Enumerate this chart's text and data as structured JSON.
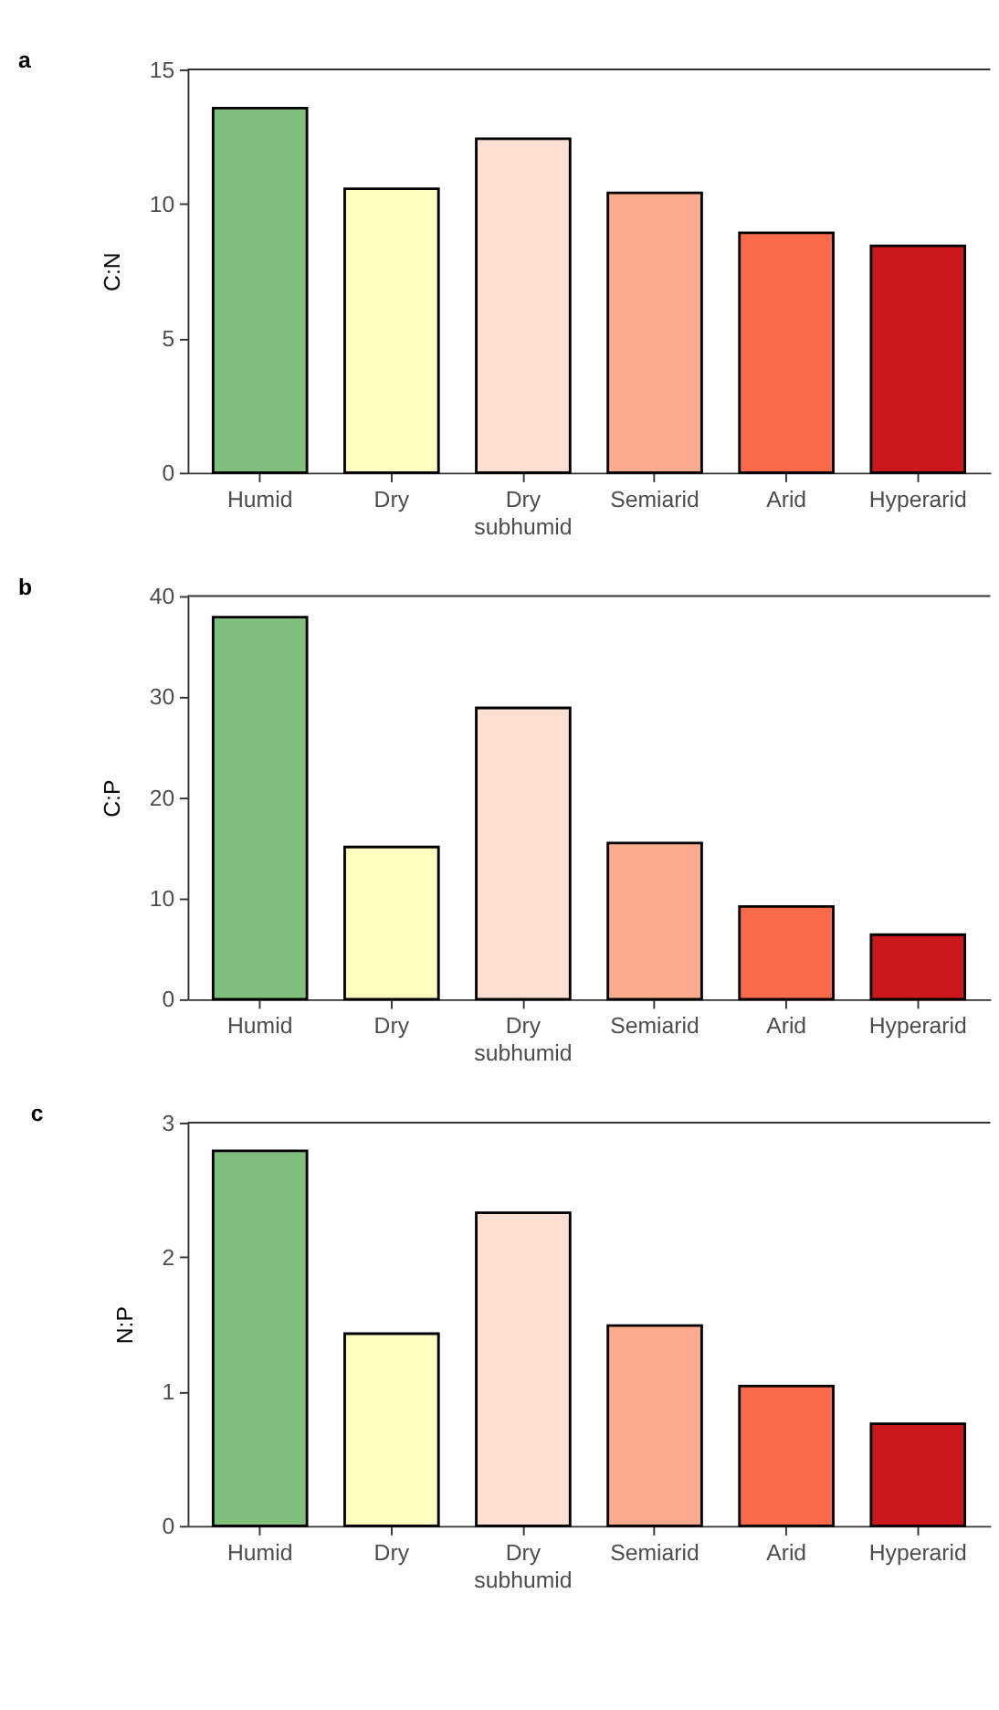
{
  "chart_data": [
    {
      "type": "bar",
      "title": "a",
      "ylabel": "C:N",
      "categories": [
        "Humid",
        "Dry",
        "Dry subhumid",
        "Semiarid",
        "Arid",
        "Hyperarid"
      ],
      "values": [
        13.56,
        10.56,
        12.42,
        10.41,
        8.92,
        8.44
      ],
      "colors": [
        "#7fbf7b",
        "#fffdbf",
        "#fee0d2",
        "#fcab8f",
        "#fb6a4a",
        "#cb181d"
      ],
      "ylim": [
        0,
        15
      ],
      "yticks": [
        0,
        5,
        10,
        15
      ],
      "grid": false,
      "legend": false
    },
    {
      "type": "bar",
      "title": "b",
      "ylabel": "C:P",
      "categories": [
        "Humid",
        "Dry",
        "Dry subhumid",
        "Semiarid",
        "Arid",
        "Hyperarid"
      ],
      "values": [
        37.9,
        15.1,
        28.9,
        15.5,
        9.2,
        6.4
      ],
      "colors": [
        "#7fbf7b",
        "#fffdbf",
        "#fee0d2",
        "#fcab8f",
        "#fb6a4a",
        "#cb181d"
      ],
      "ylim": [
        0,
        40
      ],
      "yticks": [
        0,
        10,
        20,
        30,
        40
      ],
      "grid": false,
      "legend": false
    },
    {
      "type": "bar",
      "title": "c",
      "ylabel": "N:P",
      "categories": [
        "Humid",
        "Dry",
        "Dry subhumid",
        "Semiarid",
        "Arid",
        "Hyperarid"
      ],
      "values": [
        2.79,
        1.43,
        2.33,
        1.49,
        1.04,
        0.76
      ],
      "colors": [
        "#7fbf7b",
        "#fffdbf",
        "#fee0d2",
        "#fcab8f",
        "#fb6a4a",
        "#cb181d"
      ],
      "ylim": [
        0,
        3
      ],
      "yticks": [
        0,
        1,
        2,
        3
      ],
      "grid": false,
      "legend": false
    }
  ]
}
